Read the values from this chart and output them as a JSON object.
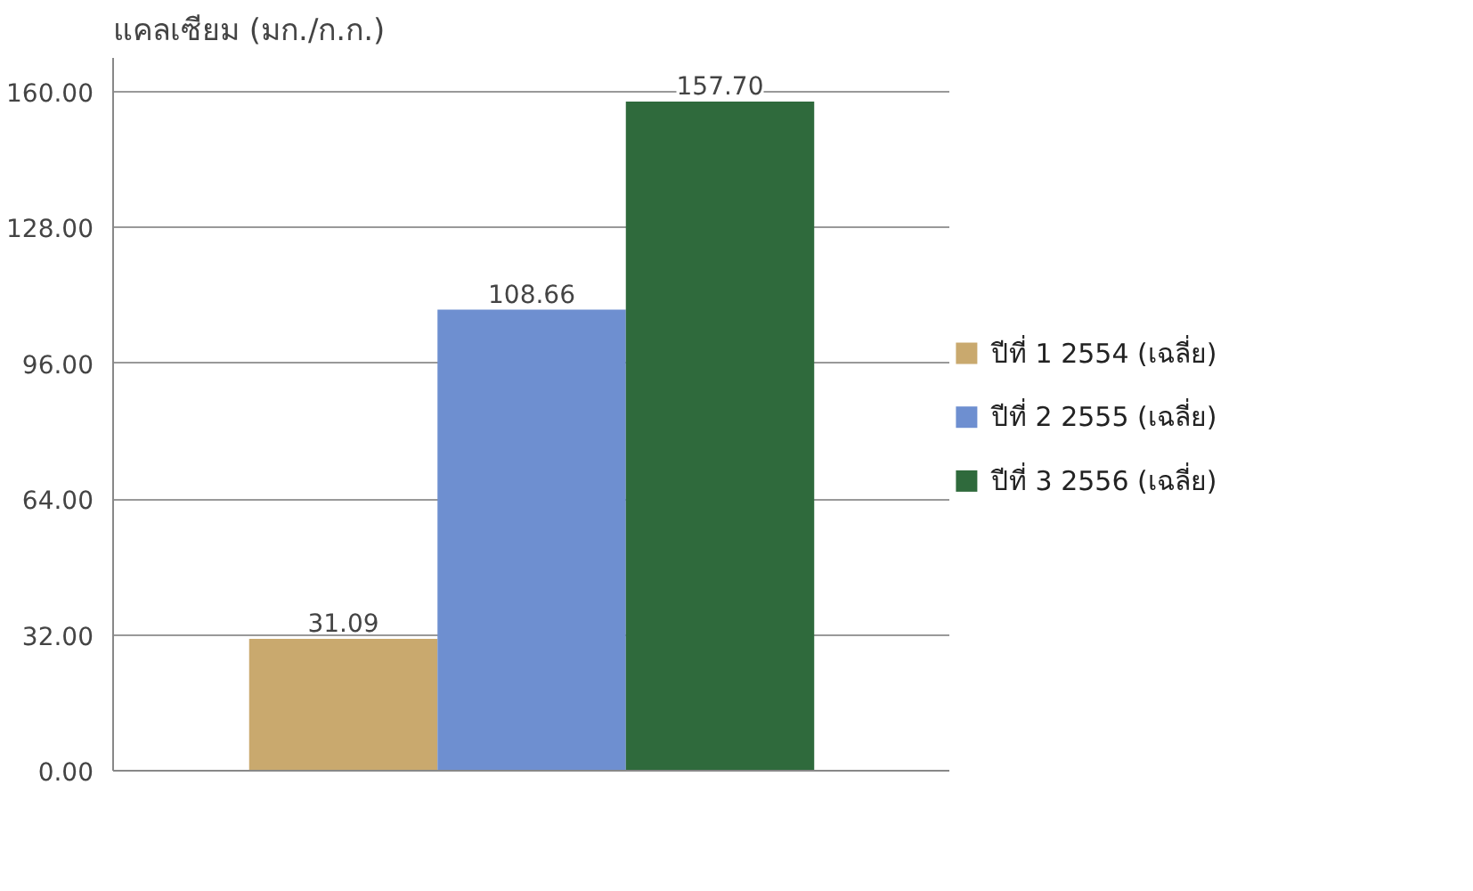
{
  "chart_data": {
    "type": "bar",
    "title": "แคลเซียม (มก./ก.ก.)",
    "categories": [
      null
    ],
    "series": [
      {
        "name": "ปีที่ 1 2554  (เฉลี่ย)",
        "color": "#c9a96e",
        "values": [
          31.09
        ],
        "value_labels": [
          "31.09"
        ]
      },
      {
        "name": "ปีที่ 2 2555 (เฉลี่ย)",
        "color": "#6e8fd0",
        "values": [
          108.66
        ],
        "value_labels": [
          "108.66"
        ]
      },
      {
        "name": "ปีที่ 3 2556 (เฉลี่ย)",
        "color": "#2f6a3c",
        "values": [
          157.7
        ],
        "value_labels": [
          "157.70"
        ]
      }
    ],
    "ylim": [
      0,
      168
    ],
    "yticks": [
      {
        "value": 0,
        "label": "0.00"
      },
      {
        "value": 32,
        "label": "32.00"
      },
      {
        "value": 64,
        "label": "64.00"
      },
      {
        "value": 96,
        "label": "96.00"
      },
      {
        "value": 128,
        "label": "128.00"
      },
      {
        "value": 160,
        "label": "160.00"
      }
    ],
    "grid": "y",
    "legend": "right"
  }
}
